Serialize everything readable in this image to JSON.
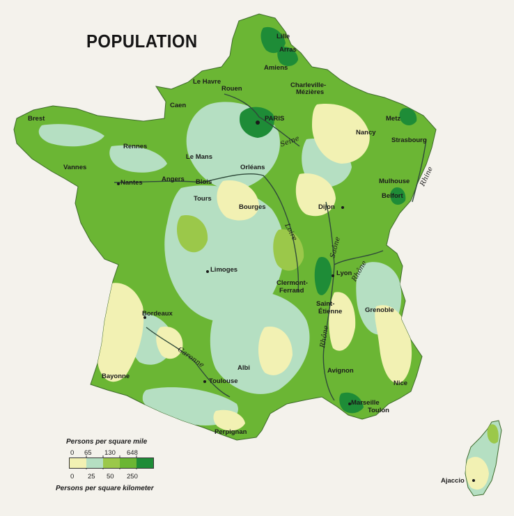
{
  "map": {
    "title": "POPULATION",
    "colors": {
      "background": "#f4f2ec",
      "density_0": "#f2f1b3",
      "density_1": "#b5dfc2",
      "density_2": "#9bc84a",
      "density_3": "#6bb634",
      "density_4": "#1e8c37",
      "river": "#2f4a3a",
      "city_dot": "#1a1a1a"
    },
    "cities": [
      {
        "name": "Lille"
      },
      {
        "name": "Arras"
      },
      {
        "name": "Amiens"
      },
      {
        "name": "Le Havre"
      },
      {
        "name": "Rouen"
      },
      {
        "name": "Charleville-"
      },
      {
        "name": "Mézières"
      },
      {
        "name": "Caen"
      },
      {
        "name": "PARIS"
      },
      {
        "name": "Brest"
      },
      {
        "name": "Metz"
      },
      {
        "name": "Nancy"
      },
      {
        "name": "Strasbourg"
      },
      {
        "name": "Rennes"
      },
      {
        "name": "Le Mans"
      },
      {
        "name": "Vannes"
      },
      {
        "name": "Orléans"
      },
      {
        "name": "Nantes"
      },
      {
        "name": "Angers"
      },
      {
        "name": "Blois"
      },
      {
        "name": "Tours"
      },
      {
        "name": "Bourges"
      },
      {
        "name": "Dijon"
      },
      {
        "name": "Mulhouse"
      },
      {
        "name": "Belfort"
      },
      {
        "name": "Limoges"
      },
      {
        "name": "Clermont-"
      },
      {
        "name": "Ferrand"
      },
      {
        "name": "Lyon"
      },
      {
        "name": "Saint-"
      },
      {
        "name": "Étienne"
      },
      {
        "name": "Grenoble"
      },
      {
        "name": "Bordeaux"
      },
      {
        "name": "Albi"
      },
      {
        "name": "Bayonne"
      },
      {
        "name": "Toulouse"
      },
      {
        "name": "Avignon"
      },
      {
        "name": "Nice"
      },
      {
        "name": "Marseille"
      },
      {
        "name": "Toulon"
      },
      {
        "name": "Perpignan"
      },
      {
        "name": "Ajaccio"
      }
    ],
    "rivers": [
      {
        "name": "Seine"
      },
      {
        "name": "Rhine"
      },
      {
        "name": "Loire"
      },
      {
        "name": "Saône"
      },
      {
        "name": "Rhône"
      },
      {
        "name": "Rhône"
      },
      {
        "name": "Garonne"
      }
    ],
    "legend": {
      "title_mile": "Persons per square mile",
      "title_km": "Persons per square kilometer",
      "ticks_mile": [
        "0",
        "65",
        "130",
        "648"
      ],
      "ticks_km": [
        "0",
        "25",
        "50",
        "250"
      ],
      "levels": [
        {
          "color": "#f2f1b3"
        },
        {
          "color": "#b5dfc2"
        },
        {
          "color": "#9bc84a"
        },
        {
          "color": "#6bb634"
        },
        {
          "color": "#1e8c37"
        }
      ]
    }
  }
}
